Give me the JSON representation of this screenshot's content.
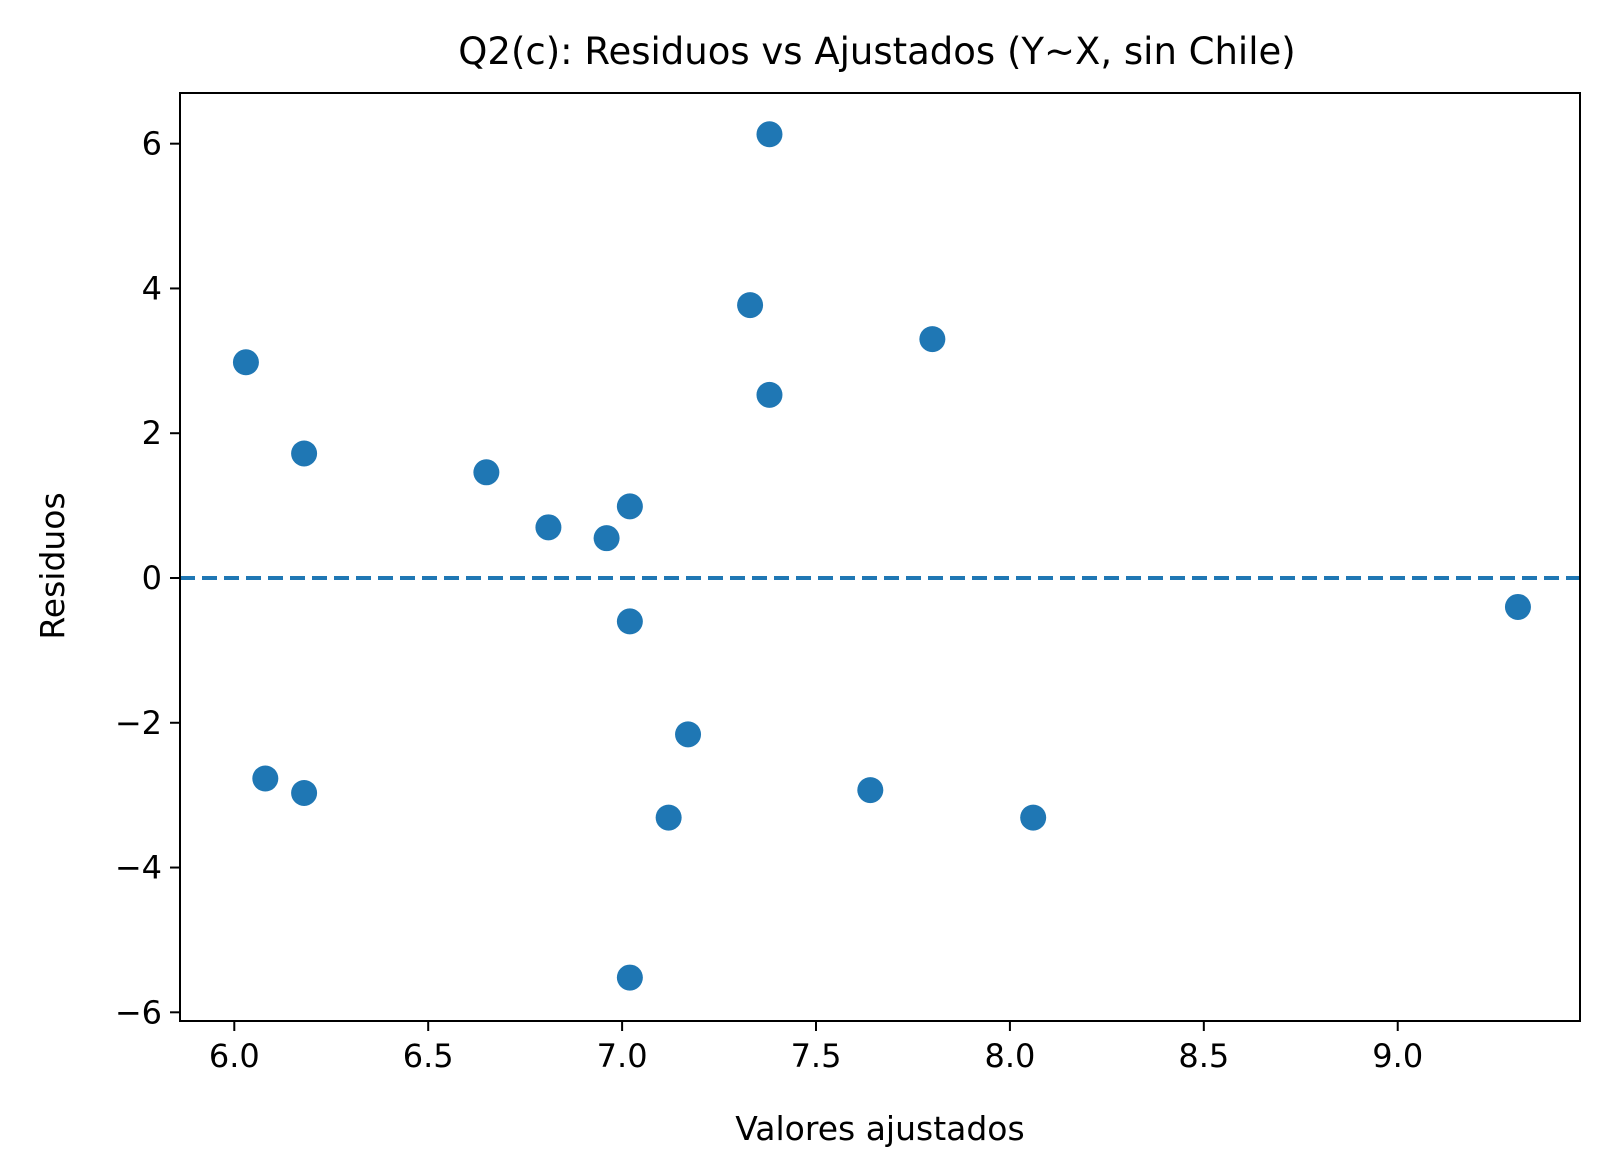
{
  "chart_data": {
    "type": "scatter",
    "title": "Q2(c): Residuos vs Ajustados (Y~X, sin Chile)",
    "xlabel": "Valores ajustados",
    "ylabel": "Residuos",
    "xlim": [
      5.86,
      9.47
    ],
    "ylim": [
      -6.12,
      6.7
    ],
    "xticks": [
      6.0,
      6.5,
      7.0,
      7.5,
      8.0,
      8.5,
      9.0
    ],
    "xtick_labels": [
      "6.0",
      "6.5",
      "7.0",
      "7.5",
      "8.0",
      "8.5",
      "9.0"
    ],
    "yticks": [
      -6,
      -4,
      -2,
      0,
      2,
      4,
      6
    ],
    "ytick_labels": [
      "−6",
      "−4",
      "−2",
      "0",
      "2",
      "4",
      "6"
    ],
    "grid": false,
    "reference_line": {
      "y": 0,
      "style": "dashed",
      "color": "#1f77b4"
    },
    "series": [
      {
        "name": "Residuos",
        "color": "#1f77b4",
        "x": [
          6.03,
          6.08,
          6.18,
          6.18,
          6.65,
          6.81,
          6.96,
          7.02,
          7.02,
          7.02,
          7.12,
          7.17,
          7.33,
          7.38,
          7.38,
          7.64,
          7.8,
          8.06,
          9.31
        ],
        "y": [
          2.98,
          -2.77,
          1.72,
          -2.97,
          1.46,
          0.7,
          0.55,
          0.99,
          -0.6,
          -5.52,
          -3.31,
          -2.16,
          3.77,
          6.13,
          2.53,
          -2.93,
          3.3,
          -3.31,
          -0.4
        ]
      }
    ]
  }
}
